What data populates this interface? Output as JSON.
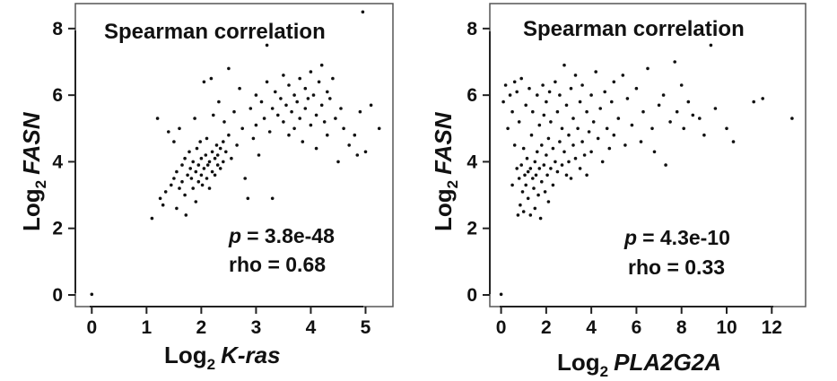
{
  "chart_data": [
    {
      "type": "scatter",
      "title": "Spearman correlation",
      "xlabel": {
        "prefix": "Log",
        "sub": "2",
        "gene": "K-ras"
      },
      "ylabel": {
        "prefix": "Log",
        "sub": "2",
        "gene": "FASN"
      },
      "xlim": [
        -0.3,
        5.5
      ],
      "ylim": [
        -0.35,
        8.75
      ],
      "xticks": [
        0,
        1,
        2,
        3,
        4,
        5
      ],
      "yticks": [
        0,
        2,
        4,
        6,
        8
      ],
      "grid": false,
      "stats": {
        "p_label": "p",
        "p_value": "= 3.8e-48",
        "rho": "rho = 0.68"
      },
      "points": [
        [
          0.0,
          0.02
        ],
        [
          1.1,
          2.3
        ],
        [
          1.2,
          5.3
        ],
        [
          1.25,
          2.9
        ],
        [
          1.3,
          2.7
        ],
        [
          1.35,
          3.1
        ],
        [
          1.4,
          4.9
        ],
        [
          1.45,
          3.3
        ],
        [
          1.5,
          3.5
        ],
        [
          1.5,
          4.6
        ],
        [
          1.55,
          3.7
        ],
        [
          1.55,
          2.6
        ],
        [
          1.6,
          3.2
        ],
        [
          1.6,
          5.0
        ],
        [
          1.65,
          3.9
        ],
        [
          1.65,
          3.4
        ],
        [
          1.7,
          4.1
        ],
        [
          1.7,
          3.0
        ],
        [
          1.72,
          2.4
        ],
        [
          1.75,
          3.6
        ],
        [
          1.78,
          4.3
        ],
        [
          1.8,
          3.8
        ],
        [
          1.82,
          3.5
        ],
        [
          1.85,
          4.0
        ],
        [
          1.85,
          3.2
        ],
        [
          1.88,
          5.3
        ],
        [
          1.9,
          3.7
        ],
        [
          1.9,
          2.8
        ],
        [
          1.92,
          4.4
        ],
        [
          1.95,
          3.4
        ],
        [
          1.95,
          3.9
        ],
        [
          1.98,
          4.6
        ],
        [
          2.0,
          3.6
        ],
        [
          2.0,
          4.1
        ],
        [
          2.02,
          3.3
        ],
        [
          2.05,
          3.8
        ],
        [
          2.05,
          6.4
        ],
        [
          2.08,
          4.2
        ],
        [
          2.1,
          3.5
        ],
        [
          2.1,
          4.7
        ],
        [
          2.12,
          3.9
        ],
        [
          2.15,
          4.0
        ],
        [
          2.15,
          3.2
        ],
        [
          2.18,
          6.5
        ],
        [
          2.2,
          4.3
        ],
        [
          2.2,
          3.7
        ],
        [
          2.22,
          5.4
        ],
        [
          2.25,
          4.1
        ],
        [
          2.25,
          3.6
        ],
        [
          2.28,
          4.5
        ],
        [
          2.3,
          3.9
        ],
        [
          2.3,
          4.2
        ],
        [
          2.32,
          5.8
        ],
        [
          2.35,
          4.4
        ],
        [
          2.35,
          3.8
        ],
        [
          2.4,
          4.6
        ],
        [
          2.4,
          4.0
        ],
        [
          2.42,
          5.2
        ],
        [
          2.45,
          4.3
        ],
        [
          2.5,
          4.8
        ],
        [
          2.5,
          6.8
        ],
        [
          2.55,
          4.1
        ],
        [
          2.6,
          5.5
        ],
        [
          2.65,
          4.5
        ],
        [
          2.7,
          6.2
        ],
        [
          2.75,
          5.0
        ],
        [
          2.8,
          3.5
        ],
        [
          2.85,
          2.9
        ],
        [
          2.9,
          5.6
        ],
        [
          2.95,
          4.7
        ],
        [
          3.0,
          6.0
        ],
        [
          3.0,
          5.1
        ],
        [
          3.05,
          4.2
        ],
        [
          3.1,
          5.8
        ],
        [
          3.15,
          5.3
        ],
        [
          3.2,
          7.5
        ],
        [
          3.2,
          6.4
        ],
        [
          3.25,
          4.9
        ],
        [
          3.3,
          5.6
        ],
        [
          3.3,
          2.9
        ],
        [
          3.35,
          6.1
        ],
        [
          3.4,
          5.4
        ],
        [
          3.45,
          5.9
        ],
        [
          3.5,
          5.2
        ],
        [
          3.5,
          6.6
        ],
        [
          3.55,
          5.7
        ],
        [
          3.6,
          4.8
        ],
        [
          3.6,
          6.3
        ],
        [
          3.65,
          5.5
        ],
        [
          3.7,
          6.0
        ],
        [
          3.7,
          5.0
        ],
        [
          3.75,
          5.8
        ],
        [
          3.8,
          6.5
        ],
        [
          3.8,
          5.3
        ],
        [
          3.85,
          4.6
        ],
        [
          3.9,
          6.2
        ],
        [
          3.9,
          5.6
        ],
        [
          3.95,
          5.9
        ],
        [
          4.0,
          6.7
        ],
        [
          4.0,
          5.1
        ],
        [
          4.05,
          6.0
        ],
        [
          4.1,
          5.4
        ],
        [
          4.1,
          4.4
        ],
        [
          4.15,
          6.4
        ],
        [
          4.2,
          5.7
        ],
        [
          4.2,
          6.9
        ],
        [
          4.25,
          5.2
        ],
        [
          4.3,
          6.1
        ],
        [
          4.3,
          4.8
        ],
        [
          4.35,
          5.9
        ],
        [
          4.4,
          6.5
        ],
        [
          4.45,
          5.3
        ],
        [
          4.5,
          4.0
        ],
        [
          4.55,
          5.6
        ],
        [
          4.6,
          5.0
        ],
        [
          4.7,
          4.5
        ],
        [
          4.8,
          4.8
        ],
        [
          4.85,
          4.2
        ],
        [
          4.9,
          5.5
        ],
        [
          5.0,
          4.3
        ],
        [
          5.1,
          5.7
        ],
        [
          5.25,
          5.0
        ],
        [
          4.95,
          8.5
        ]
      ]
    },
    {
      "type": "scatter",
      "title": "Spearman correlation",
      "xlabel": {
        "prefix": "Log",
        "sub": "2",
        "gene": "PLA2G2A"
      },
      "ylabel": {
        "prefix": "Log",
        "sub": "2",
        "gene": "FASN"
      },
      "xlim": [
        -0.5,
        13.5
      ],
      "ylim": [
        -0.35,
        8.75
      ],
      "xticks": [
        0,
        2,
        4,
        6,
        8,
        10,
        12
      ],
      "yticks": [
        0,
        2,
        4,
        6,
        8
      ],
      "grid": false,
      "stats": {
        "p_label": "p",
        "p_value": "= 4.3e-10",
        "rho": "rho = 0.33"
      },
      "points": [
        [
          0.0,
          0.02
        ],
        [
          0.1,
          5.8
        ],
        [
          0.2,
          6.3
        ],
        [
          0.3,
          5.0
        ],
        [
          0.4,
          6.0
        ],
        [
          0.5,
          3.3
        ],
        [
          0.5,
          5.5
        ],
        [
          0.6,
          6.4
        ],
        [
          0.6,
          4.5
        ],
        [
          0.7,
          3.8
        ],
        [
          0.7,
          6.1
        ],
        [
          0.75,
          2.4
        ],
        [
          0.8,
          3.5
        ],
        [
          0.8,
          5.2
        ],
        [
          0.85,
          2.7
        ],
        [
          0.9,
          3.9
        ],
        [
          0.9,
          6.5
        ],
        [
          0.95,
          3.1
        ],
        [
          1.0,
          4.4
        ],
        [
          1.0,
          2.5
        ],
        [
          1.05,
          3.6
        ],
        [
          1.1,
          5.7
        ],
        [
          1.1,
          3.3
        ],
        [
          1.15,
          4.1
        ],
        [
          1.2,
          2.9
        ],
        [
          1.2,
          3.7
        ],
        [
          1.25,
          6.2
        ],
        [
          1.3,
          3.8
        ],
        [
          1.3,
          2.4
        ],
        [
          1.35,
          4.8
        ],
        [
          1.4,
          3.5
        ],
        [
          1.4,
          5.5
        ],
        [
          1.45,
          3.2
        ],
        [
          1.5,
          4.0
        ],
        [
          1.5,
          2.6
        ],
        [
          1.55,
          3.6
        ],
        [
          1.6,
          6.0
        ],
        [
          1.6,
          4.3
        ],
        [
          1.65,
          3.0
        ],
        [
          1.7,
          3.8
        ],
        [
          1.7,
          5.1
        ],
        [
          1.75,
          2.3
        ],
        [
          1.8,
          4.5
        ],
        [
          1.8,
          3.4
        ],
        [
          1.85,
          6.3
        ],
        [
          1.9,
          3.9
        ],
        [
          1.9,
          5.4
        ],
        [
          1.95,
          3.1
        ],
        [
          2.0,
          4.2
        ],
        [
          2.0,
          5.8
        ],
        [
          2.05,
          3.6
        ],
        [
          2.1,
          4.7
        ],
        [
          2.1,
          2.8
        ],
        [
          2.15,
          6.1
        ],
        [
          2.2,
          3.8
        ],
        [
          2.2,
          5.2
        ],
        [
          2.3,
          4.4
        ],
        [
          2.3,
          3.3
        ],
        [
          2.4,
          6.4
        ],
        [
          2.4,
          4.0
        ],
        [
          2.5,
          5.5
        ],
        [
          2.5,
          3.7
        ],
        [
          2.6,
          4.6
        ],
        [
          2.6,
          6.0
        ],
        [
          2.7,
          3.9
        ],
        [
          2.7,
          5.0
        ],
        [
          2.8,
          4.3
        ],
        [
          2.8,
          6.9
        ],
        [
          2.9,
          3.6
        ],
        [
          2.9,
          5.7
        ],
        [
          3.0,
          4.8
        ],
        [
          3.0,
          4.0
        ],
        [
          3.1,
          6.2
        ],
        [
          3.1,
          3.5
        ],
        [
          3.2,
          5.3
        ],
        [
          3.2,
          4.5
        ],
        [
          3.3,
          4.1
        ],
        [
          3.3,
          6.6
        ],
        [
          3.4,
          5.0
        ],
        [
          3.5,
          3.8
        ],
        [
          3.5,
          5.8
        ],
        [
          3.6,
          4.6
        ],
        [
          3.6,
          6.3
        ],
        [
          3.7,
          4.2
        ],
        [
          3.8,
          5.5
        ],
        [
          3.8,
          3.6
        ],
        [
          3.9,
          4.9
        ],
        [
          4.0,
          6.0
        ],
        [
          4.0,
          4.3
        ],
        [
          4.1,
          5.2
        ],
        [
          4.2,
          6.7
        ],
        [
          4.3,
          4.7
        ],
        [
          4.4,
          5.6
        ],
        [
          4.5,
          4.0
        ],
        [
          4.6,
          6.1
        ],
        [
          4.7,
          5.0
        ],
        [
          4.8,
          4.4
        ],
        [
          4.9,
          5.8
        ],
        [
          5.0,
          6.4
        ],
        [
          5.0,
          4.8
        ],
        [
          5.2,
          5.3
        ],
        [
          5.4,
          6.6
        ],
        [
          5.5,
          4.5
        ],
        [
          5.6,
          5.9
        ],
        [
          5.8,
          5.1
        ],
        [
          6.0,
          6.2
        ],
        [
          6.2,
          4.6
        ],
        [
          6.3,
          5.5
        ],
        [
          6.5,
          6.8
        ],
        [
          6.7,
          5.0
        ],
        [
          6.8,
          4.3
        ],
        [
          7.0,
          5.7
        ],
        [
          7.2,
          6.0
        ],
        [
          7.3,
          3.9
        ],
        [
          7.5,
          5.2
        ],
        [
          7.7,
          7.0
        ],
        [
          7.8,
          5.5
        ],
        [
          8.0,
          6.3
        ],
        [
          8.1,
          5.0
        ],
        [
          8.3,
          5.8
        ],
        [
          8.5,
          5.4
        ],
        [
          8.8,
          5.3
        ],
        [
          9.0,
          4.8
        ],
        [
          9.3,
          7.5
        ],
        [
          9.5,
          5.6
        ],
        [
          10.0,
          5.0
        ],
        [
          10.3,
          4.6
        ],
        [
          11.2,
          5.8
        ],
        [
          11.6,
          5.9
        ],
        [
          12.9,
          5.3
        ]
      ]
    }
  ]
}
